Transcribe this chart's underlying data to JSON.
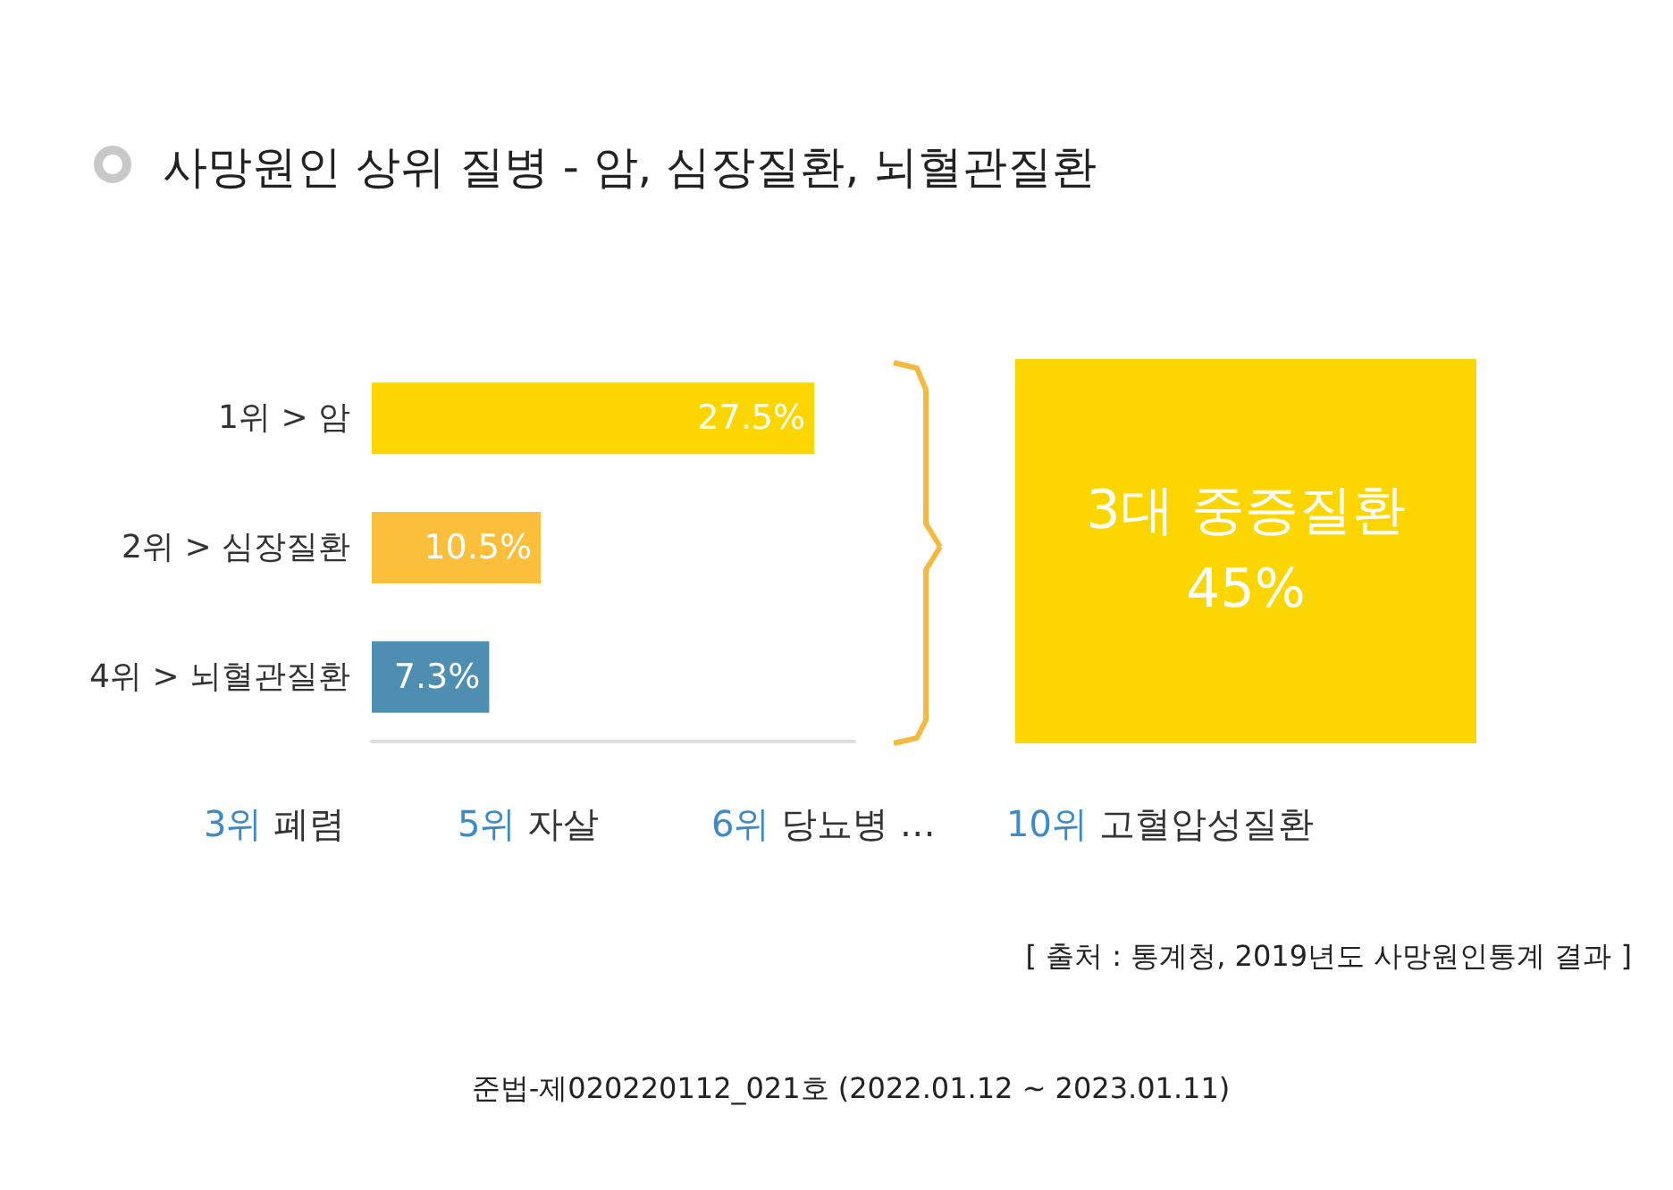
{
  "chart_data": {
    "type": "bar",
    "orientation": "horizontal",
    "title": "사망원인 상위 질병 - 암, 심장질환, 뇌혈관질환",
    "categories": [
      "1위 > 암",
      "2위 > 심장질환",
      "4위 > 뇌혈관질환"
    ],
    "values": [
      27.5,
      10.5,
      7.3
    ],
    "colors": [
      "#fdd600",
      "#fbbf3c",
      "#4e8fb1"
    ],
    "value_labels": [
      "27.5%",
      "10.5%",
      "7.3%"
    ],
    "tick_labels": "y",
    "annotations": [
      "3대 중증질환\n45%",
      "3위 폐렴",
      "5위 자살",
      "6위 당뇨병 …",
      "10위 고혈압성질환",
      "[ 출처 : 통계청, 2019년도 사망원인통계 결과 ]",
      "준법-제020220112_021호 (2022.01.12 ~ 2023.01.11)"
    ]
  }
}
